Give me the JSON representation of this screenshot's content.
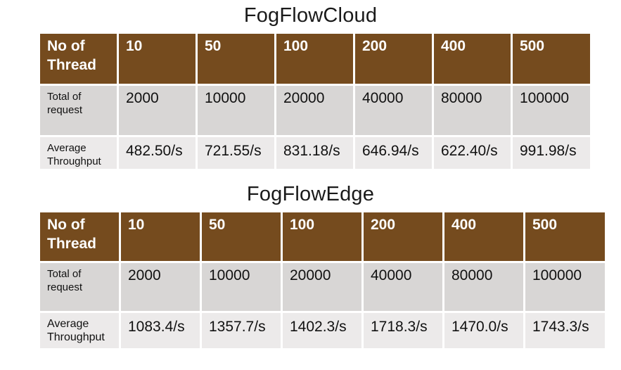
{
  "chart_data": [
    {
      "type": "table",
      "title": "FogFlowCloud",
      "header_label": "No of Thread",
      "columns": [
        "10",
        "50",
        "100",
        "200",
        "400",
        "500"
      ],
      "rows": [
        {
          "label": "Total of request",
          "values": [
            "2000",
            "10000",
            "20000",
            "40000",
            "80000",
            "100000"
          ]
        },
        {
          "label": "Average Throughput",
          "values": [
            "482.50/s",
            "721.55/s",
            "831.18/s",
            "646.94/s",
            "622.40/s",
            "991.98/s"
          ]
        }
      ]
    },
    {
      "type": "table",
      "title": "FogFlowEdge",
      "header_label": "No of Thread",
      "columns": [
        "10",
        "50",
        "100",
        "200",
        "400",
        "500"
      ],
      "rows": [
        {
          "label": "Total of request",
          "values": [
            "2000",
            "10000",
            "20000",
            "40000",
            "80000",
            "100000"
          ]
        },
        {
          "label": "Average Throughput",
          "values": [
            "1083.4/s",
            "1357.7/s",
            "1402.3/s",
            "1718.3/s",
            "1470.0/s",
            "1743.3/s"
          ]
        }
      ]
    }
  ],
  "colors": {
    "header_bg": "#754b1e",
    "header_text": "#ffffff",
    "row1_bg": "#d8d6d5",
    "row2_bg": "#eceaea"
  }
}
